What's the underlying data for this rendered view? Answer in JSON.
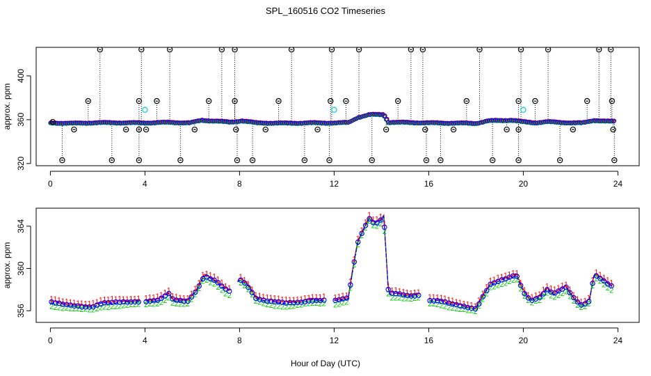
{
  "chart_data": {
    "type": "scatter",
    "title": "SPL_160516  CO2 Timeseries",
    "xlabel": "Hour of Day (UTC)",
    "colors": {
      "blue": "#0000ff",
      "red": "#ff0000",
      "green": "#00cc00",
      "cyan": "#00cccc",
      "black": "#000000"
    },
    "panels": [
      {
        "name": "top",
        "ylabel": "approx. ppm",
        "xlim": [
          -0.6,
          24.9
        ],
        "ylim": [
          318,
          426
        ],
        "xticks": [
          0,
          4,
          8,
          12,
          16,
          20,
          24
        ],
        "yticks": [
          320,
          360,
          400
        ],
        "baseline": [
          [
            0,
            357.0
          ],
          [
            1,
            356.6
          ],
          [
            2,
            357.2
          ],
          [
            3,
            357.1
          ],
          [
            4,
            357.0
          ],
          [
            5,
            357.5
          ],
          [
            5.9,
            357.0
          ],
          [
            6.4,
            359.4
          ],
          [
            7,
            358.7
          ],
          [
            7.6,
            357.6
          ],
          [
            8.1,
            359.0
          ],
          [
            8.7,
            357.0
          ],
          [
            10,
            356.7
          ],
          [
            11,
            357.0
          ],
          [
            12,
            356.9
          ],
          [
            12.6,
            357.3
          ],
          [
            13,
            362.0
          ],
          [
            13.5,
            364.5
          ],
          [
            14.1,
            364.6
          ],
          [
            14.3,
            357.6
          ],
          [
            15,
            357.4
          ],
          [
            16,
            357.0
          ],
          [
            17,
            356.8
          ],
          [
            18,
            356.6
          ],
          [
            18.5,
            358.8
          ],
          [
            19.5,
            359.5
          ],
          [
            20,
            357.9
          ],
          [
            20.5,
            357.1
          ],
          [
            21,
            358.1
          ],
          [
            21.5,
            357.4
          ],
          [
            22.5,
            356.9
          ],
          [
            23,
            359.4
          ],
          [
            23.7,
            358.3
          ]
        ],
        "circle_points": [
          {
            "x": 0.1,
            "y": 358
          },
          {
            "x": 0.5,
            "y": 323
          },
          {
            "x": 1.0,
            "y": 351
          },
          {
            "x": 1.6,
            "y": 377
          },
          {
            "x": 2.1,
            "y": 424
          },
          {
            "x": 2.6,
            "y": 323
          },
          {
            "x": 3.2,
            "y": 351
          },
          {
            "x": 3.75,
            "y": 377
          },
          {
            "x": 3.75,
            "y": 351
          },
          {
            "x": 3.75,
            "y": 323
          },
          {
            "x": 3.85,
            "y": 424
          },
          {
            "x": 4.05,
            "y": 351
          },
          {
            "x": 4.5,
            "y": 377
          },
          {
            "x": 5.05,
            "y": 424
          },
          {
            "x": 5.5,
            "y": 323
          },
          {
            "x": 6.1,
            "y": 351
          },
          {
            "x": 6.7,
            "y": 377
          },
          {
            "x": 7.25,
            "y": 424
          },
          {
            "x": 7.8,
            "y": 424
          },
          {
            "x": 7.8,
            "y": 377
          },
          {
            "x": 7.85,
            "y": 351
          },
          {
            "x": 7.9,
            "y": 323
          },
          {
            "x": 8.55,
            "y": 323
          },
          {
            "x": 9.1,
            "y": 351
          },
          {
            "x": 9.65,
            "y": 377
          },
          {
            "x": 10.2,
            "y": 424
          },
          {
            "x": 10.75,
            "y": 323
          },
          {
            "x": 11.3,
            "y": 351
          },
          {
            "x": 11.8,
            "y": 323
          },
          {
            "x": 11.85,
            "y": 377
          },
          {
            "x": 11.9,
            "y": 424
          },
          {
            "x": 12.5,
            "y": 377
          },
          {
            "x": 13.05,
            "y": 424
          },
          {
            "x": 13.6,
            "y": 323
          },
          {
            "x": 14.2,
            "y": 351
          },
          {
            "x": 14.7,
            "y": 377
          },
          {
            "x": 15.25,
            "y": 424
          },
          {
            "x": 15.75,
            "y": 424
          },
          {
            "x": 15.85,
            "y": 351
          },
          {
            "x": 15.9,
            "y": 323
          },
          {
            "x": 16.5,
            "y": 323
          },
          {
            "x": 17.05,
            "y": 351
          },
          {
            "x": 17.6,
            "y": 377
          },
          {
            "x": 18.15,
            "y": 424
          },
          {
            "x": 18.7,
            "y": 323
          },
          {
            "x": 19.3,
            "y": 351
          },
          {
            "x": 19.8,
            "y": 377
          },
          {
            "x": 19.8,
            "y": 351
          },
          {
            "x": 19.8,
            "y": 323
          },
          {
            "x": 19.9,
            "y": 424
          },
          {
            "x": 20.5,
            "y": 377
          },
          {
            "x": 21.05,
            "y": 424
          },
          {
            "x": 21.55,
            "y": 323
          },
          {
            "x": 22.1,
            "y": 351
          },
          {
            "x": 22.7,
            "y": 377
          },
          {
            "x": 23.2,
            "y": 424
          },
          {
            "x": 23.7,
            "y": 424
          },
          {
            "x": 23.75,
            "y": 377
          },
          {
            "x": 23.8,
            "y": 351
          },
          {
            "x": 23.85,
            "y": 323
          }
        ],
        "cyan_points": [
          {
            "x": 4.0,
            "y": 369
          },
          {
            "x": 12.0,
            "y": 369
          },
          {
            "x": 20.0,
            "y": 369
          }
        ]
      },
      {
        "name": "bottom",
        "ylabel": "approx. ppm",
        "xlim": [
          -0.6,
          24.9
        ],
        "ylim": [
          354.9,
          365.7
        ],
        "xticks": [
          0,
          4,
          8,
          12,
          16,
          20,
          24
        ],
        "yticks": [
          356,
          360,
          364
        ],
        "series": [
          {
            "name": "1",
            "color": "#ff0000",
            "marker": "1",
            "offset": 0.35
          },
          {
            "name": "2",
            "color": "#00cc00",
            "marker": "2",
            "offset": -0.3
          },
          {
            "name": "3",
            "color": "#0000ff",
            "marker": "3",
            "offset": 0.0
          }
        ],
        "baseline": [
          [
            0,
            356.8
          ],
          [
            0.5,
            356.6
          ],
          [
            1,
            356.5
          ],
          [
            1.5,
            356.4
          ],
          [
            1.8,
            356.4
          ],
          [
            2.2,
            356.7
          ],
          [
            3,
            356.8
          ],
          [
            3.7,
            356.9
          ],
          [
            4.0,
            356.9
          ],
          [
            4.6,
            357.0
          ],
          [
            5.0,
            357.6
          ],
          [
            5.2,
            357.0
          ],
          [
            5.8,
            356.9
          ],
          [
            6.2,
            358.0
          ],
          [
            6.5,
            359.3
          ],
          [
            7.0,
            358.8
          ],
          [
            7.4,
            358.0
          ],
          [
            7.6,
            357.8
          ],
          [
            8.0,
            359.0
          ],
          [
            8.3,
            358.5
          ],
          [
            8.7,
            357.2
          ],
          [
            9.2,
            356.9
          ],
          [
            10,
            356.7
          ],
          [
            10.5,
            356.8
          ],
          [
            11,
            357.0
          ],
          [
            11.6,
            357.0
          ],
          [
            12.0,
            356.9
          ],
          [
            12.6,
            357.2
          ],
          [
            12.8,
            360.0
          ],
          [
            13.0,
            362.5
          ],
          [
            13.3,
            364.0
          ],
          [
            13.5,
            364.8
          ],
          [
            13.7,
            364.2
          ],
          [
            14.0,
            364.6
          ],
          [
            14.1,
            365.0
          ],
          [
            14.3,
            357.6
          ],
          [
            14.6,
            357.6
          ],
          [
            15.2,
            357.4
          ],
          [
            15.6,
            357.5
          ],
          [
            16,
            357.0
          ],
          [
            16.5,
            356.9
          ],
          [
            17,
            356.6
          ],
          [
            17.5,
            356.4
          ],
          [
            18,
            356.2
          ],
          [
            18.3,
            357.4
          ],
          [
            18.6,
            358.5
          ],
          [
            19.0,
            358.8
          ],
          [
            19.4,
            359.1
          ],
          [
            19.7,
            359.4
          ],
          [
            20.0,
            357.8
          ],
          [
            20.3,
            357.0
          ],
          [
            20.7,
            357.3
          ],
          [
            21.0,
            358.0
          ],
          [
            21.3,
            357.6
          ],
          [
            21.8,
            358.2
          ],
          [
            22.2,
            357.0
          ],
          [
            22.5,
            356.5
          ],
          [
            22.8,
            357.0
          ],
          [
            23.0,
            359.5
          ],
          [
            23.3,
            359.0
          ],
          [
            23.7,
            358.3
          ]
        ],
        "gaps": [
          [
            3.8,
            4.0
          ],
          [
            7.6,
            7.9
          ],
          [
            11.6,
            12.0
          ],
          [
            15.6,
            16.0
          ],
          [
            23.8,
            24.5
          ]
        ]
      }
    ]
  }
}
